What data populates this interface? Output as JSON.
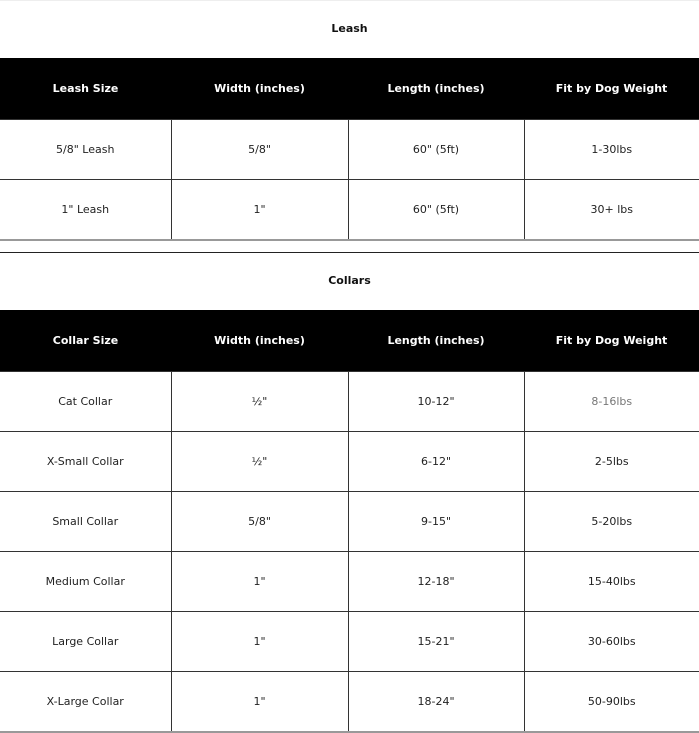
{
  "leash": {
    "title": "Leash",
    "headers": [
      "Leash Size",
      "Width (inches)",
      "Length (inches)",
      "Fit by Dog Weight"
    ],
    "rows": [
      [
        "5/8\" Leash",
        "5/8\"",
        "60\" (5ft)",
        "1-30lbs"
      ],
      [
        "1\" Leash",
        "1\"",
        "60\" (5ft)",
        "30+ lbs"
      ]
    ]
  },
  "collars": {
    "title": "Collars",
    "headers": [
      "Collar Size",
      "Width (inches)",
      "Length (inches)",
      "Fit by Dog Weight"
    ],
    "rows": [
      [
        "Cat Collar",
        "½\"",
        "10-12\"",
        "8-16lbs"
      ],
      [
        "X-Small Collar",
        "½\"",
        "6-12\"",
        "2-5lbs"
      ],
      [
        "Small Collar",
        "5/8\"",
        "9-15\"",
        "5-20lbs"
      ],
      [
        "Medium Collar",
        "1\"",
        "12-18\"",
        "15-40lbs"
      ],
      [
        "Large Collar",
        "1\"",
        "15-21\"",
        "30-60lbs"
      ],
      [
        "X-Large Collar",
        "1\"",
        "18-24\"",
        "50-90lbs"
      ]
    ]
  }
}
